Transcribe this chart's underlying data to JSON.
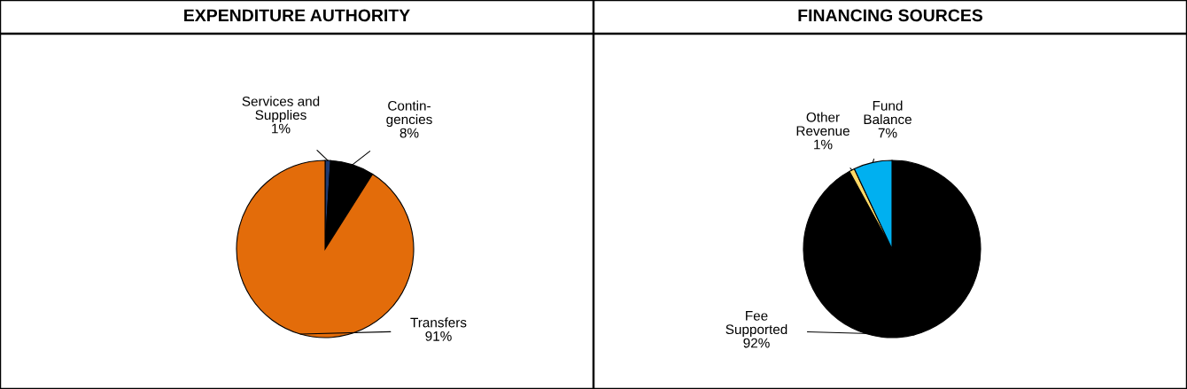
{
  "chart_data": [
    {
      "type": "pie",
      "title": "EXPENDITURE AUTHORITY",
      "categories": [
        "Services and\nSupplies",
        "Contin-\ngencies",
        "Transfers"
      ],
      "values": [
        1,
        8,
        91
      ],
      "colors": [
        "#1f3a70",
        "#000000",
        "#e36c0a"
      ],
      "value_labels": [
        "1%",
        "8%",
        "91%"
      ]
    },
    {
      "type": "pie",
      "title": "FINANCING SOURCES",
      "categories": [
        "Fee\nSupported",
        "Other\nRevenue",
        "Fund\nBalance"
      ],
      "values": [
        92,
        1,
        7
      ],
      "colors": [
        "#000000",
        "#ffd966",
        "#00b0f0"
      ],
      "value_labels": [
        "92%",
        "1%",
        "7%"
      ]
    }
  ]
}
